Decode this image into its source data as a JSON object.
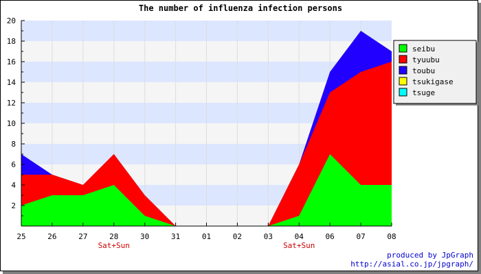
{
  "chart_data": {
    "type": "area",
    "stacked": true,
    "title": "The number of influenza infection persons",
    "xlabel": "",
    "ylabel": "",
    "categories": [
      "25",
      "26",
      "27",
      "28",
      "30",
      "31",
      "01",
      "02",
      "03",
      "04",
      "06",
      "07",
      "08"
    ],
    "category_annotations": [
      {
        "category": "28",
        "text": "Sat+Sun"
      },
      {
        "category": "04",
        "text": "Sat+Sun"
      }
    ],
    "ylim": [
      0,
      20
    ],
    "yticks": [
      2,
      4,
      6,
      8,
      10,
      12,
      14,
      16,
      18,
      20
    ],
    "grid": true,
    "legend_position": "right",
    "series": [
      {
        "name": "seibu",
        "color": "#00ff00",
        "values": [
          2,
          3,
          3,
          4,
          1,
          0,
          0,
          0,
          0,
          1,
          7,
          4,
          4
        ]
      },
      {
        "name": "tyuubu",
        "color": "#ff0000",
        "values": [
          3,
          2,
          1,
          3,
          2,
          0,
          0,
          0,
          0,
          5,
          6,
          11,
          12
        ]
      },
      {
        "name": "toubu",
        "color": "#2200ff",
        "values": [
          2,
          0,
          0,
          0,
          0,
          0,
          0,
          0,
          0,
          0,
          2,
          4,
          1
        ]
      },
      {
        "name": "tsukigase",
        "color": "#ffff00",
        "values": [
          0,
          0,
          0,
          0,
          0,
          0,
          0,
          0,
          0,
          0,
          0,
          0,
          0
        ]
      },
      {
        "name": "tsuge",
        "color": "#00ffff",
        "values": [
          0,
          0,
          0,
          0,
          0,
          0,
          0,
          0,
          0,
          0,
          0,
          0,
          0
        ]
      }
    ],
    "band_colors": [
      "#f5f5f5",
      "#dde6ff"
    ],
    "credit": [
      "produced by JpGraph",
      "http://asial.co.jp/jpgraph/"
    ]
  }
}
